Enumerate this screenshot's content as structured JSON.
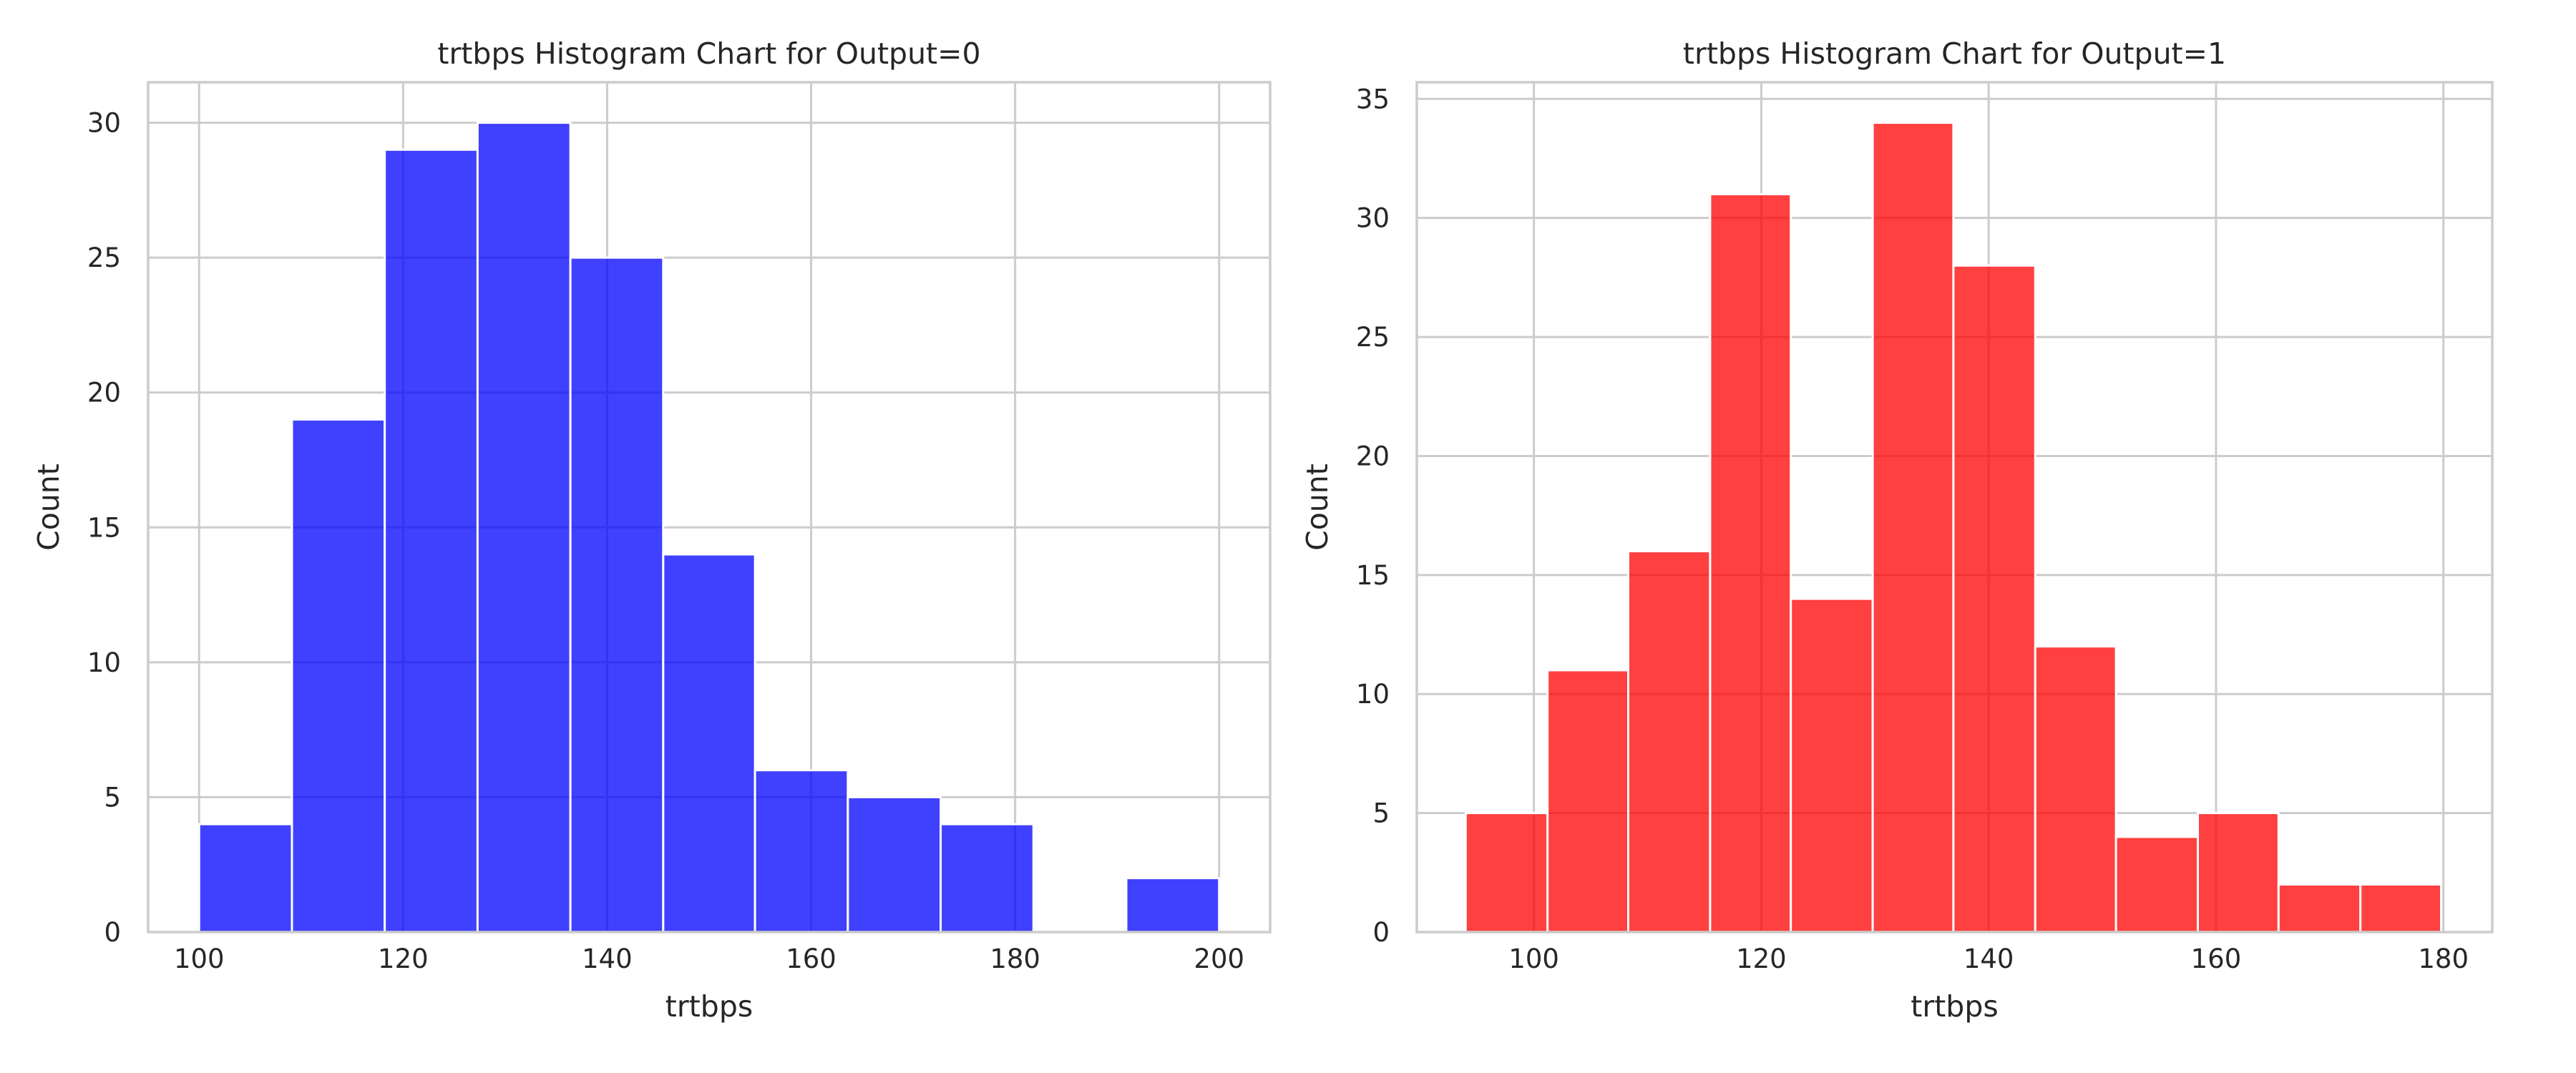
{
  "chart_data": [
    {
      "type": "bar",
      "title": "trtbps Histogram Chart for Output=0",
      "xlabel": "trtbps",
      "ylabel": "Count",
      "color": "#0000ff",
      "bins": [
        {
          "x0": 100.0,
          "x1": 109.1,
          "count": 4
        },
        {
          "x0": 109.1,
          "x1": 118.2,
          "count": 19
        },
        {
          "x0": 118.2,
          "x1": 127.3,
          "count": 29
        },
        {
          "x0": 127.3,
          "x1": 136.4,
          "count": 30
        },
        {
          "x0": 136.4,
          "x1": 145.5,
          "count": 25
        },
        {
          "x0": 145.5,
          "x1": 154.5,
          "count": 14
        },
        {
          "x0": 154.5,
          "x1": 163.6,
          "count": 6
        },
        {
          "x0": 163.6,
          "x1": 172.7,
          "count": 5
        },
        {
          "x0": 172.7,
          "x1": 181.8,
          "count": 4
        },
        {
          "x0": 181.8,
          "x1": 190.9,
          "count": 0
        },
        {
          "x0": 190.9,
          "x1": 200.0,
          "count": 2
        }
      ],
      "xlim": [
        95,
        205
      ],
      "ylim": [
        0,
        31.5
      ],
      "xticks": [
        100,
        120,
        140,
        160,
        180,
        200
      ],
      "yticks": [
        0,
        5,
        10,
        15,
        20,
        25,
        30
      ],
      "grid": true
    },
    {
      "type": "bar",
      "title": "trtbps Histogram Chart for Output=1",
      "xlabel": "trtbps",
      "ylabel": "Count",
      "color": "#ff0000",
      "bins": [
        {
          "x0": 94.0,
          "x1": 101.2,
          "count": 5
        },
        {
          "x0": 101.2,
          "x1": 108.3,
          "count": 11
        },
        {
          "x0": 108.3,
          "x1": 115.5,
          "count": 16
        },
        {
          "x0": 115.5,
          "x1": 122.6,
          "count": 31
        },
        {
          "x0": 122.6,
          "x1": 129.8,
          "count": 14
        },
        {
          "x0": 129.8,
          "x1": 136.9,
          "count": 34
        },
        {
          "x0": 136.9,
          "x1": 144.1,
          "count": 28
        },
        {
          "x0": 144.1,
          "x1": 151.2,
          "count": 12
        },
        {
          "x0": 151.2,
          "x1": 158.4,
          "count": 4
        },
        {
          "x0": 158.4,
          "x1": 165.5,
          "count": 5
        },
        {
          "x0": 165.5,
          "x1": 172.7,
          "count": 2
        },
        {
          "x0": 172.7,
          "x1": 179.8,
          "count": 2
        }
      ],
      "xlim": [
        89.7,
        184.3
      ],
      "ylim": [
        0,
        35.7
      ],
      "xticks": [
        100,
        120,
        140,
        160,
        180
      ],
      "yticks": [
        0,
        5,
        10,
        15,
        20,
        25,
        30,
        35
      ],
      "grid": true
    }
  ]
}
